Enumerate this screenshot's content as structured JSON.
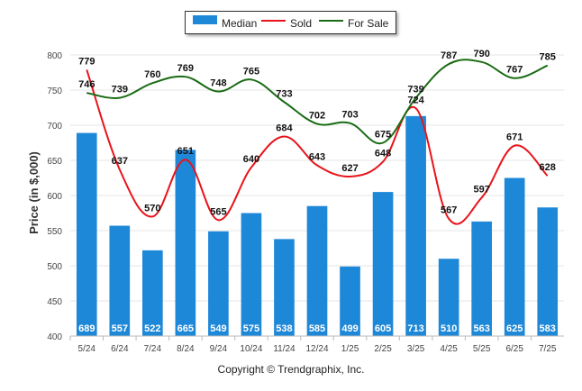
{
  "chart_data": {
    "type": "bar",
    "title": "",
    "ylabel": "Price (in $,000)",
    "xlabel": "",
    "ylim": [
      400,
      800
    ],
    "yticks": [
      400,
      450,
      500,
      550,
      600,
      650,
      700,
      750,
      800
    ],
    "categories": [
      "5/24",
      "6/24",
      "7/24",
      "8/24",
      "9/24",
      "10/24",
      "11/24",
      "12/24",
      "1/25",
      "2/25",
      "3/25",
      "4/25",
      "5/25",
      "6/25",
      "7/25"
    ],
    "series": [
      {
        "name": "Median",
        "kind": "bar",
        "color": "#1e88d8",
        "values": [
          689,
          557,
          522,
          665,
          549,
          575,
          538,
          585,
          499,
          605,
          713,
          510,
          563,
          625,
          583
        ]
      },
      {
        "name": "Sold",
        "kind": "line",
        "color": "#e8141a",
        "values": [
          779,
          637,
          570,
          651,
          565,
          640,
          684,
          643,
          627,
          648,
          724,
          567,
          597,
          671,
          628
        ]
      },
      {
        "name": "For Sale",
        "kind": "line",
        "color": "#1a6b14",
        "values": [
          746,
          739,
          760,
          769,
          748,
          765,
          733,
          702,
          703,
          675,
          739,
          787,
          790,
          767,
          785
        ]
      }
    ],
    "legend_position": "top-center",
    "grid": true
  },
  "footer": {
    "copyright": "Copyright © Trendgraphix, Inc."
  }
}
